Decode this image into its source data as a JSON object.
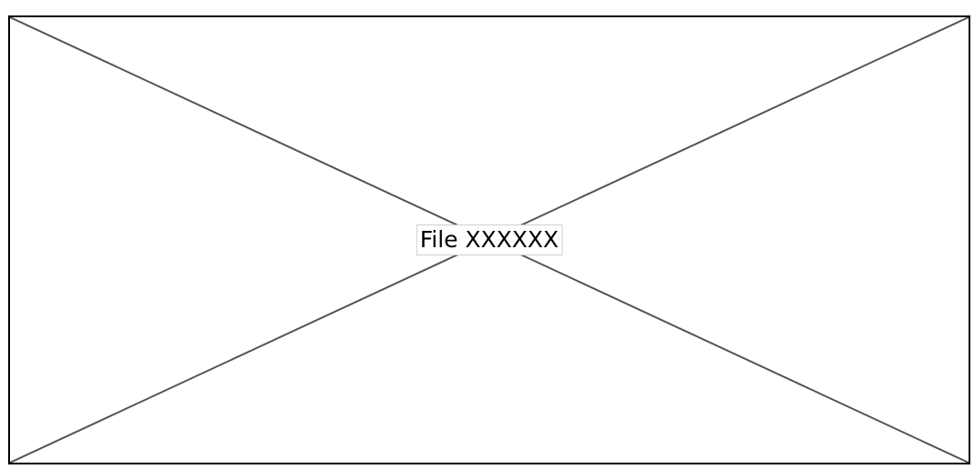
{
  "placeholder": {
    "label": "File XXXXXX",
    "border_color": "#000000",
    "cross_color": "#555555",
    "background_color": "#ffffff"
  }
}
